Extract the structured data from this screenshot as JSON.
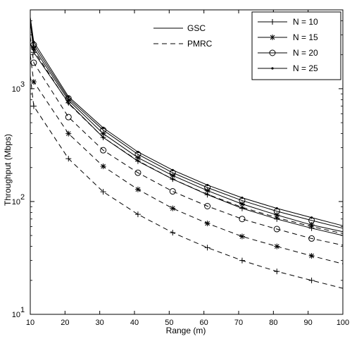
{
  "chart_data": {
    "type": "line",
    "xlabel": "Range (m)",
    "ylabel": "Throughput (Mbps)",
    "xlim": [
      10,
      100
    ],
    "ylim": [
      10,
      5000
    ],
    "yscale": "log",
    "x_ticks": [
      10,
      20,
      30,
      40,
      50,
      60,
      70,
      80,
      90,
      100
    ],
    "y_ticks": [
      {
        "value": 10,
        "base": "10",
        "exp": "1"
      },
      {
        "value": 100,
        "base": "10",
        "exp": "2"
      },
      {
        "value": 1000,
        "base": "10",
        "exp": "3"
      }
    ],
    "grid": false,
    "linestyle_legend": {
      "placement": "top-center",
      "entries": [
        {
          "label": "GSC",
          "dash": "solid"
        },
        {
          "label": "PMRC",
          "dash": "dashed"
        }
      ]
    },
    "marker_legend": {
      "placement": "top-right",
      "entries": [
        {
          "label": "N = 10",
          "marker": "plus"
        },
        {
          "label": "N = 15",
          "marker": "star"
        },
        {
          "label": "N = 20",
          "marker": "circle"
        },
        {
          "label": "N = 25",
          "marker": "dot"
        }
      ]
    },
    "x": [
      10,
      11,
      21,
      31,
      41,
      51,
      61,
      71,
      81,
      91,
      100
    ],
    "marker_x": [
      11,
      21,
      31,
      41,
      51,
      61,
      71,
      81,
      91
    ],
    "series": [
      {
        "n_label": "N = 10",
        "method": "GSC",
        "marker": "plus",
        "dash": "solid",
        "values": [
          4000,
          2100,
          750,
          370,
          228,
          158,
          115,
          87,
          70,
          58,
          50
        ]
      },
      {
        "n_label": "N = 15",
        "method": "GSC",
        "marker": "star",
        "dash": "solid",
        "values": [
          4100,
          2300,
          790,
          400,
          245,
          170,
          125,
          95,
          76,
          62,
          54
        ]
      },
      {
        "n_label": "N = 20",
        "method": "GSC",
        "marker": "circle",
        "dash": "solid",
        "values": [
          4200,
          2450,
          820,
          430,
          262,
          180,
          133,
          102,
          82,
          68,
          58
        ]
      },
      {
        "n_label": "N = 25",
        "method": "GSC",
        "marker": "dot",
        "dash": "solid",
        "values": [
          4300,
          2600,
          850,
          450,
          275,
          190,
          140,
          108,
          87,
          72,
          61
        ]
      },
      {
        "n_label": "N = 10",
        "method": "PMRC",
        "marker": "plus",
        "dash": "dashed",
        "values": [
          1300,
          700,
          240,
          122,
          77,
          53,
          39,
          30,
          24,
          20,
          17
        ]
      },
      {
        "n_label": "N = 15",
        "method": "PMRC",
        "marker": "star",
        "dash": "dashed",
        "values": [
          2000,
          1150,
          400,
          205,
          128,
          87,
          64,
          49,
          40,
          33,
          28
        ]
      },
      {
        "n_label": "N = 20",
        "method": "PMRC",
        "marker": "circle",
        "dash": "dashed",
        "values": [
          2900,
          1700,
          560,
          285,
          180,
          123,
          91,
          70,
          57,
          47,
          41
        ]
      },
      {
        "n_label": "N = 25",
        "method": "PMRC",
        "marker": "dot",
        "dash": "dashed",
        "values": [
          3800,
          2200,
          740,
          370,
          230,
          158,
          116,
          89,
          72,
          60,
          52
        ]
      }
    ]
  }
}
